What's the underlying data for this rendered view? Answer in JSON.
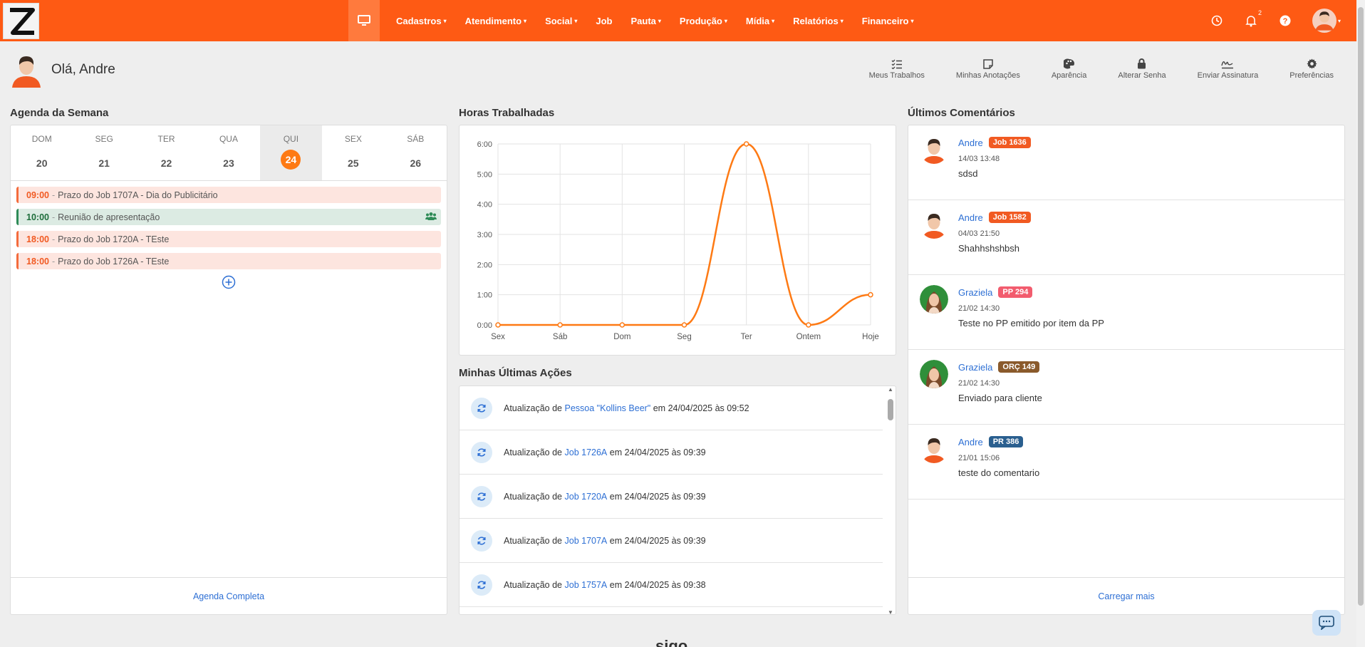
{
  "nav": {
    "items": [
      {
        "label": "Cadastros",
        "caret": true
      },
      {
        "label": "Atendimento",
        "caret": true
      },
      {
        "label": "Social",
        "caret": true
      },
      {
        "label": "Job",
        "caret": false
      },
      {
        "label": "Pauta",
        "caret": true
      },
      {
        "label": "Produção",
        "caret": true
      },
      {
        "label": "Mídia",
        "caret": true
      },
      {
        "label": "Relatórios",
        "caret": true
      },
      {
        "label": "Financeiro",
        "caret": true
      }
    ],
    "notifications_count": "2"
  },
  "greeting": "Olá, Andre",
  "quick_actions": [
    {
      "label": "Meus Trabalhos",
      "icon": "checklist-icon"
    },
    {
      "label": "Minhas Anotações",
      "icon": "note-icon"
    },
    {
      "label": "Aparência",
      "icon": "palette-icon"
    },
    {
      "label": "Alterar Senha",
      "icon": "lock-icon"
    },
    {
      "label": "Enviar Assinatura",
      "icon": "signature-icon"
    },
    {
      "label": "Preferências",
      "icon": "gear-icon"
    }
  ],
  "agenda": {
    "title": "Agenda da Semana",
    "days": [
      {
        "name": "DOM",
        "date": "20",
        "today": false
      },
      {
        "name": "SEG",
        "date": "21",
        "today": false
      },
      {
        "name": "TER",
        "date": "22",
        "today": false
      },
      {
        "name": "QUA",
        "date": "23",
        "today": false
      },
      {
        "name": "QUI",
        "date": "24",
        "today": true
      },
      {
        "name": "SEX",
        "date": "25",
        "today": false
      },
      {
        "name": "SÁB",
        "date": "26",
        "today": false
      }
    ],
    "events": [
      {
        "time": "09:00",
        "text": "Prazo do Job 1707A - Dia do Publicitário",
        "kind": "red"
      },
      {
        "time": "10:00",
        "text": "Reunião de apresentação",
        "kind": "green"
      },
      {
        "time": "18:00",
        "text": "Prazo do Job 1720A - TEste",
        "kind": "red"
      },
      {
        "time": "18:00",
        "text": "Prazo do Job 1726A - TEste",
        "kind": "red"
      }
    ],
    "footer_link": "Agenda Completa"
  },
  "hours": {
    "title": "Horas Trabalhadas"
  },
  "chart_data": {
    "type": "line",
    "categories": [
      "Sex",
      "Sáb",
      "Dom",
      "Seg",
      "Ter",
      "Ontem",
      "Hoje"
    ],
    "values": [
      0,
      0,
      0,
      0,
      6,
      0,
      1
    ],
    "y_tick_labels": [
      "0:00",
      "1:00",
      "2:00",
      "3:00",
      "4:00",
      "5:00",
      "6:00"
    ],
    "ylim": [
      0,
      6
    ],
    "grid": true,
    "color": "#fe7a14"
  },
  "actions": {
    "title": "Minhas Últimas Ações",
    "items": [
      {
        "prefix": "Atualização de",
        "link": "Pessoa \"Kollins Beer\"",
        "suffix": "em 24/04/2025 às 09:52"
      },
      {
        "prefix": "Atualização de",
        "link": "Job 1726A",
        "suffix": "em 24/04/2025 às 09:39"
      },
      {
        "prefix": "Atualização de",
        "link": "Job 1720A",
        "suffix": "em 24/04/2025 às 09:39"
      },
      {
        "prefix": "Atualização de",
        "link": "Job 1707A",
        "suffix": "em 24/04/2025 às 09:39"
      },
      {
        "prefix": "Atualização de",
        "link": "Job 1757A",
        "suffix": "em 24/04/2025 às 09:38"
      }
    ]
  },
  "comments": {
    "title": "Últimos Comentários",
    "items": [
      {
        "author": "Andre",
        "tag": "Job 1636",
        "tag_color": "#f15a22",
        "date": "14/03 13:48",
        "text": "sdsd",
        "avatar": "male"
      },
      {
        "author": "Andre",
        "tag": "Job 1582",
        "tag_color": "#f15a22",
        "date": "04/03 21:50",
        "text": "Shahhshshbsh",
        "avatar": "male"
      },
      {
        "author": "Graziela",
        "tag": "PP 294",
        "tag_color": "#f25c6e",
        "date": "21/02 14:30",
        "text": "Teste no PP emitido por item da PP",
        "avatar": "female"
      },
      {
        "author": "Graziela",
        "tag": "ORÇ 149",
        "tag_color": "#8a5a2b",
        "date": "21/02 14:30",
        "text": "Enviado para cliente",
        "avatar": "female"
      },
      {
        "author": "Andre",
        "tag": "PR 386",
        "tag_color": "#2a5f8f",
        "date": "21/01 15:06",
        "text": "teste do comentario",
        "avatar": "male"
      }
    ],
    "footer_link": "Carregar mais"
  },
  "footer_brand": "sigo"
}
